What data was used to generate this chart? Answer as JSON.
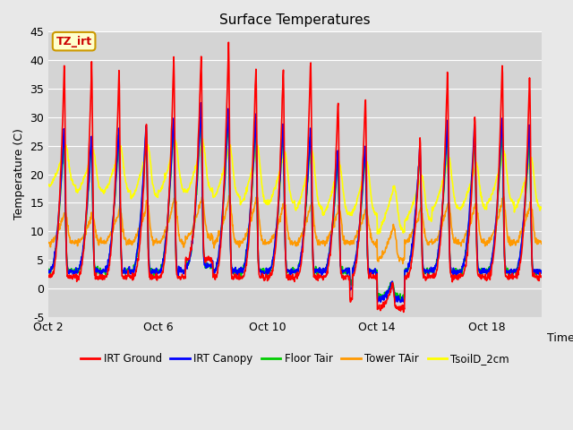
{
  "title": "Surface Temperatures",
  "xlabel": "Time",
  "ylabel": "Temperature (C)",
  "ylim": [
    -5,
    45
  ],
  "background_color": "#e8e8e8",
  "plot_bg_color": "#d4d4d4",
  "annotation_text": "TZ_irt",
  "annotation_bg": "#ffffcc",
  "annotation_border": "#cc9900",
  "annotation_text_color": "#cc0000",
  "x_ticks_labels": [
    "Oct 2",
    "Oct 6",
    "Oct 10",
    "Oct 14",
    "Oct 18"
  ],
  "x_ticks_positions": [
    0,
    4,
    8,
    12,
    16
  ],
  "y_ticks": [
    -5,
    0,
    5,
    10,
    15,
    20,
    25,
    30,
    35,
    40,
    45
  ],
  "series": [
    {
      "name": "IRT Ground",
      "color": "#ff0000",
      "lw": 1.2
    },
    {
      "name": "IRT Canopy",
      "color": "#0000ff",
      "lw": 1.2
    },
    {
      "name": "Floor Tair",
      "color": "#00cc00",
      "lw": 1.2
    },
    {
      "name": "Tower TAir",
      "color": "#ff9900",
      "lw": 1.2
    },
    {
      "name": "TsoilD_2cm",
      "color": "#ffff00",
      "lw": 1.2
    }
  ],
  "grid_color": "#ffffff",
  "grid_lw": 0.8,
  "seed": 42
}
